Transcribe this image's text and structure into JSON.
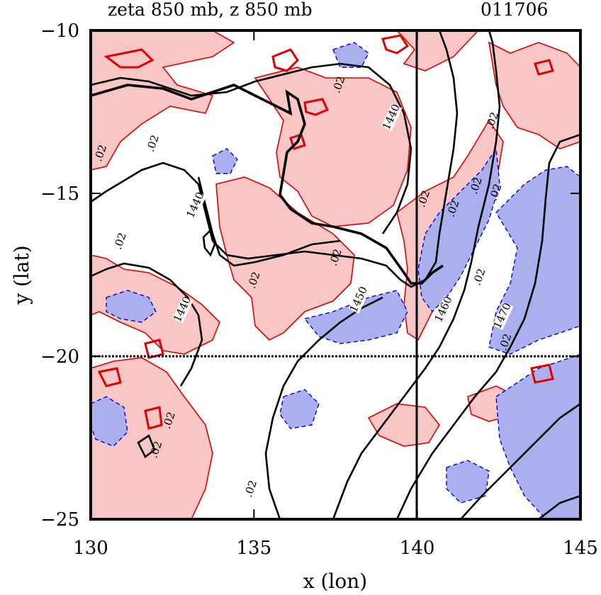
{
  "chart_data": {
    "type": "contour",
    "title": "zeta 850 mb, z 850 mb",
    "date_label": "011706",
    "xlabel": "x (lon)",
    "ylabel": "y (lat)",
    "xlim": [
      130,
      145
    ],
    "ylim": [
      -25,
      -10
    ],
    "xticks": [
      130,
      135,
      140,
      145
    ],
    "yticks": [
      -25,
      -20,
      -15,
      -10
    ],
    "xtick_labels": [
      "130",
      "135",
      "140",
      "145"
    ],
    "ytick_labels": [
      "−25",
      "−20",
      "−15",
      "−10"
    ],
    "grid": false,
    "reference_lines": {
      "vertical_lon": 140,
      "horizontal_lat": -20
    },
    "colors": {
      "positive_fill": "#f9c6c6",
      "negative_fill": "#aab0ee",
      "positive_line": "#e00000",
      "negative_line": "#0000d0",
      "height_line": "#000000"
    },
    "vorticity_contour_labels": [
      {
        "text": ".02",
        "x": 137.7,
        "y": -11.7
      },
      {
        "text": ".02",
        "x": 130.4,
        "y": -13.8
      },
      {
        "text": ".02",
        "x": 132.0,
        "y": -13.5
      },
      {
        "text": ".02",
        "x": 142.4,
        "y": -12.8
      },
      {
        "text": ".02",
        "x": 131.0,
        "y": -16.5
      },
      {
        "text": ".02",
        "x": 137.6,
        "y": -17.0
      },
      {
        "text": ".02",
        "x": 135.1,
        "y": -17.7
      },
      {
        "text": ".02",
        "x": 140.3,
        "y": -15.2
      },
      {
        "text": ".02",
        "x": 141.2,
        "y": -15.5
      },
      {
        "text": ".02",
        "x": 141.9,
        "y": -14.8
      },
      {
        "text": ".02",
        "x": 142.0,
        "y": -17.6
      },
      {
        "text": ".02",
        "x": 142.5,
        "y": -15.0
      },
      {
        "text": ".02",
        "x": 142.8,
        "y": -19.6
      },
      {
        "text": ".02",
        "x": 132.5,
        "y": -22.0
      },
      {
        "text": ".02",
        "x": 132.1,
        "y": -22.9
      },
      {
        "text": ".02",
        "x": 135.0,
        "y": -24.1
      }
    ],
    "height_contours": [
      {
        "level": 1440,
        "label": "1440",
        "label_pos": [
          139.3,
          -12.7
        ]
      },
      {
        "level": 1440,
        "label": "1440",
        "label_pos": [
          133.3,
          -15.4
        ]
      },
      {
        "level": 1440,
        "label": "1440",
        "label_pos": [
          132.9,
          -18.6
        ]
      },
      {
        "level": 1450,
        "label": "1450",
        "label_pos": [
          138.3,
          -18.3
        ]
      },
      {
        "level": 1460,
        "label": "1460",
        "label_pos": [
          140.9,
          -18.6
        ]
      },
      {
        "level": 1470,
        "label": "1470",
        "label_pos": [
          142.7,
          -18.8
        ]
      }
    ]
  }
}
